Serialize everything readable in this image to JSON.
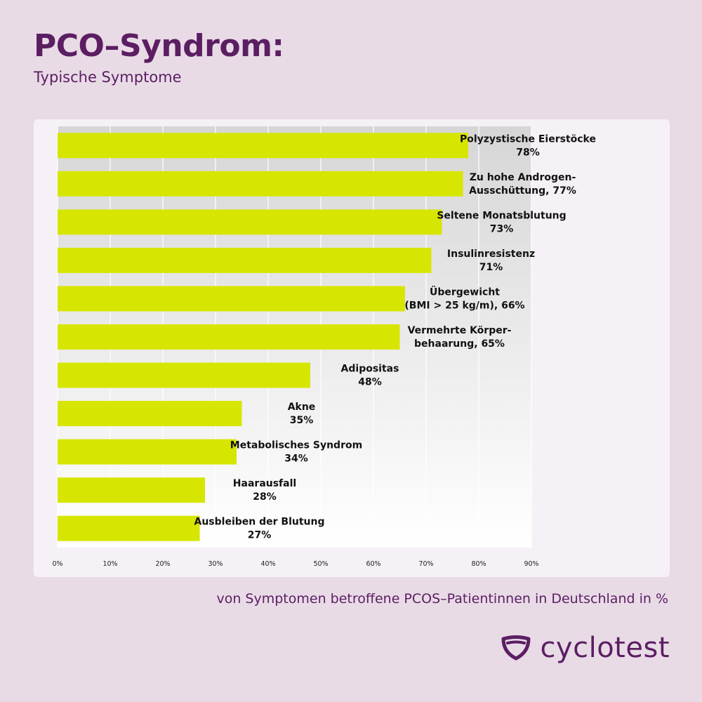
{
  "header": {
    "title": "PCO–Syndrom:",
    "subtitle": "Typische Symptome"
  },
  "caption": "von Symptomen betroffene PCOS–Patientinnen in Deutschland in %",
  "brand": {
    "name": "cyclotest",
    "logo_icon": "shield-mark-icon",
    "color": "#5c1e63"
  },
  "colors": {
    "bar": "#d7e600",
    "accent": "#5c1e63"
  },
  "chart_data": {
    "type": "bar",
    "orientation": "horizontal",
    "categories": [
      [
        "Polyzystische Eierstöcke",
        "78%"
      ],
      [
        "Zu hohe Androgen-",
        "Ausschüttung, 77%"
      ],
      [
        "Seltene Monatsblutung",
        "73%"
      ],
      [
        "Insulinresistenz",
        "71%"
      ],
      [
        "Übergewicht",
        "(BMI > 25 kg/m), 66%"
      ],
      [
        "Vermehrte Körper-",
        "behaarung, 65%"
      ],
      [
        "Adipositas",
        "48%"
      ],
      [
        "Akne",
        "35%"
      ],
      [
        "Metabolisches Syndrom",
        "34%"
      ],
      [
        "Haarausfall",
        "28%"
      ],
      [
        "Ausbleiben der Blutung",
        "27%"
      ]
    ],
    "values": [
      78,
      77,
      73,
      71,
      66,
      65,
      48,
      35,
      34,
      28,
      27
    ],
    "xlim": [
      0,
      90
    ],
    "xticks": [
      0,
      10,
      20,
      30,
      40,
      50,
      60,
      70,
      80,
      90
    ],
    "xtick_labels": [
      "0%",
      "10%",
      "20%",
      "30%",
      "40%",
      "50%",
      "60%",
      "70%",
      "80%",
      "90%"
    ],
    "grid": true
  }
}
